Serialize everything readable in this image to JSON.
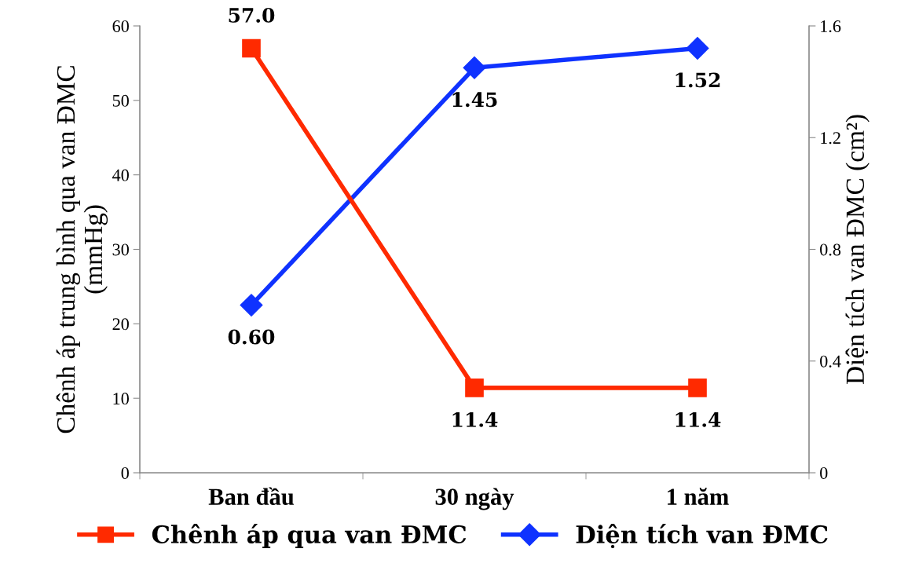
{
  "chart_data": {
    "type": "line",
    "categories": [
      "Ban đầu",
      "30 ngày",
      "1 năm"
    ],
    "ylabel": "Chênh áp trung bình qua van ĐMC\n(mmHg)",
    "y2label": "Diện tích van ĐMC (cm²)",
    "ylim": [
      0,
      60
    ],
    "yticks": [
      0,
      10,
      20,
      30,
      40,
      50,
      60
    ],
    "y2lim": [
      0,
      1.6
    ],
    "y2ticks": [
      0,
      0.4,
      0.8,
      1.2,
      1.6
    ],
    "grid": false,
    "legend": "bottom",
    "line_style": "solid",
    "series": [
      {
        "name": "Chênh áp qua van ĐMC",
        "color": "#ff2a00",
        "marker": "square",
        "values": [
          57.0,
          11.4,
          11.4
        ],
        "value_labels": [
          "57.0",
          "11.4",
          "11.4"
        ]
      },
      {
        "name": "Diện tích van ĐMC",
        "color": "#0f32ff",
        "marker": "diamond",
        "axis": "y2",
        "values": [
          0.6,
          1.45,
          1.52
        ],
        "value_labels": [
          "0.60",
          "1.45",
          "1.52"
        ]
      }
    ]
  }
}
